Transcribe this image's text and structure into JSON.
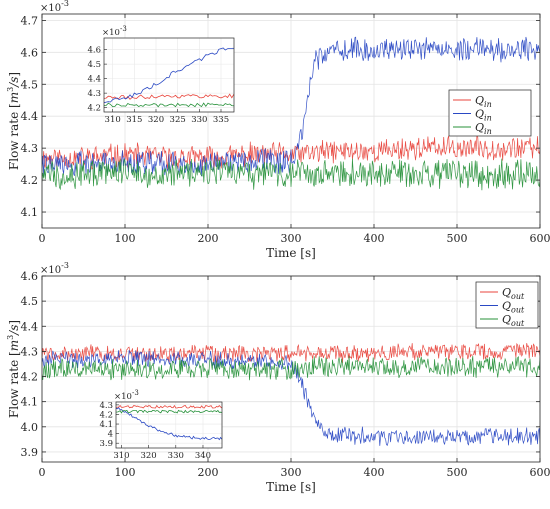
{
  "chart_data": [
    {
      "type": "line",
      "exponent_base": "10",
      "exponent_power": "-3",
      "xlabel": "Time [s]",
      "ylabel": "Flow rate [m³/s]",
      "ylabel_parts": {
        "pre": "Flow rate [",
        "unit_base": "m",
        "unit_sup": "3",
        "post": "/s]"
      },
      "xlim": [
        0,
        600
      ],
      "ylim": [
        4.05,
        4.72
      ],
      "xticks": [
        0,
        100,
        200,
        300,
        400,
        500,
        600
      ],
      "yticks": [
        4.1,
        4.2,
        4.3,
        4.4,
        4.5,
        4.6,
        4.7
      ],
      "grid": true,
      "legend": {
        "placement": "right-middle",
        "entries": [
          {
            "main": "Q",
            "sub": "in",
            "color": "#e8453c"
          },
          {
            "main": "Q",
            "sub": "in",
            "color": "#2a49c4"
          },
          {
            "main": "Q",
            "sub": "in",
            "color": "#27913a"
          }
        ]
      },
      "series": [
        {
          "color": "#e8453c",
          "x": [
            0,
            50,
            100,
            150,
            200,
            250,
            300,
            350,
            400,
            450,
            500,
            550,
            600
          ],
          "values": [
            4.27,
            4.27,
            4.28,
            4.27,
            4.27,
            4.28,
            4.28,
            4.29,
            4.29,
            4.3,
            4.3,
            4.3,
            4.3
          ]
        },
        {
          "color": "#2a49c4",
          "x": [
            0,
            50,
            100,
            150,
            200,
            250,
            300,
            310,
            315,
            320,
            325,
            330,
            340,
            350,
            400,
            450,
            500,
            550,
            600
          ],
          "values": [
            4.25,
            4.25,
            4.26,
            4.25,
            4.25,
            4.26,
            4.26,
            4.3,
            4.35,
            4.45,
            4.52,
            4.58,
            4.6,
            4.61,
            4.61,
            4.61,
            4.61,
            4.61,
            4.61
          ]
        },
        {
          "color": "#27913a",
          "x": [
            0,
            50,
            100,
            150,
            200,
            250,
            300,
            350,
            400,
            450,
            500,
            550,
            600
          ],
          "values": [
            4.22,
            4.22,
            4.23,
            4.22,
            4.22,
            4.22,
            4.22,
            4.22,
            4.22,
            4.22,
            4.22,
            4.22,
            4.22
          ]
        }
      ],
      "inset": {
        "xlim": [
          308,
          338
        ],
        "ylim": [
          4.17,
          4.68
        ],
        "xticks": [
          310,
          315,
          320,
          325,
          330,
          335
        ],
        "yticks": [
          4.2,
          4.3,
          4.4,
          4.5,
          4.6
        ],
        "exponent_base": "10",
        "exponent_power": "-3",
        "series": [
          {
            "color": "#e8453c",
            "x": [
              308,
              315,
              320,
              325,
              330,
              338
            ],
            "values": [
              4.27,
              4.27,
              4.28,
              4.28,
              4.28,
              4.28
            ]
          },
          {
            "color": "#2a49c4",
            "x": [
              308,
              312,
              316,
              320,
              324,
              328,
              332,
              335,
              338
            ],
            "values": [
              4.24,
              4.26,
              4.3,
              4.36,
              4.44,
              4.5,
              4.56,
              4.6,
              4.62
            ]
          },
          {
            "color": "#27913a",
            "x": [
              308,
              315,
              320,
              325,
              330,
              338
            ],
            "values": [
              4.22,
              4.22,
              4.22,
              4.22,
              4.22,
              4.22
            ]
          }
        ]
      }
    },
    {
      "type": "line",
      "exponent_base": "10",
      "exponent_power": "-3",
      "xlabel": "Time [s]",
      "ylabel": "Flow rate [m³/s]",
      "ylabel_parts": {
        "pre": "Flow rate [",
        "unit_base": "m",
        "unit_sup": "3",
        "post": "/s]"
      },
      "xlim": [
        0,
        600
      ],
      "ylim": [
        3.86,
        4.6
      ],
      "xticks": [
        0,
        100,
        200,
        300,
        400,
        500,
        600
      ],
      "yticks": [
        3.9,
        4.0,
        4.1,
        4.2,
        4.3,
        4.4,
        4.5,
        4.6
      ],
      "grid": true,
      "legend": {
        "placement": "top-right",
        "entries": [
          {
            "main": "Q",
            "sub": "out",
            "color": "#e8453c"
          },
          {
            "main": "Q",
            "sub": "out",
            "color": "#2a49c4"
          },
          {
            "main": "Q",
            "sub": "out",
            "color": "#27913a"
          }
        ]
      },
      "series": [
        {
          "color": "#e8453c",
          "x": [
            0,
            50,
            100,
            150,
            200,
            250,
            300,
            350,
            400,
            450,
            500,
            550,
            600
          ],
          "values": [
            4.29,
            4.29,
            4.29,
            4.29,
            4.29,
            4.29,
            4.29,
            4.29,
            4.29,
            4.3,
            4.3,
            4.3,
            4.3
          ]
        },
        {
          "color": "#2a49c4",
          "x": [
            0,
            50,
            100,
            150,
            200,
            250,
            300,
            310,
            320,
            330,
            340,
            350,
            400,
            450,
            500,
            550,
            600
          ],
          "values": [
            4.27,
            4.27,
            4.27,
            4.27,
            4.27,
            4.26,
            4.25,
            4.2,
            4.1,
            4.02,
            3.98,
            3.97,
            3.96,
            3.96,
            3.96,
            3.96,
            3.96
          ]
        },
        {
          "color": "#27913a",
          "x": [
            0,
            50,
            100,
            150,
            200,
            250,
            300,
            350,
            400,
            450,
            500,
            550,
            600
          ],
          "values": [
            4.23,
            4.23,
            4.23,
            4.23,
            4.23,
            4.23,
            4.23,
            4.24,
            4.24,
            4.24,
            4.24,
            4.24,
            4.24
          ]
        }
      ],
      "inset": {
        "xlim": [
          308,
          347
        ],
        "ylim": [
          3.85,
          4.33
        ],
        "xticks": [
          310,
          320,
          330,
          340
        ],
        "yticks": [
          3.9,
          4.0,
          4.1,
          4.2,
          4.3
        ],
        "ytick_labels": [
          "3.9",
          "4",
          "4.1",
          "4.2",
          "4.3"
        ],
        "exponent_base": "10",
        "exponent_power": "-3",
        "series": [
          {
            "color": "#e8453c",
            "x": [
              308,
              320,
              330,
              347
            ],
            "values": [
              4.28,
              4.28,
              4.28,
              4.28
            ]
          },
          {
            "color": "#2a49c4",
            "x": [
              308,
              312,
              316,
              320,
              325,
              330,
              335,
              340,
              347
            ],
            "values": [
              4.27,
              4.22,
              4.15,
              4.08,
              4.02,
              3.98,
              3.96,
              3.95,
              3.95
            ]
          },
          {
            "color": "#27913a",
            "x": [
              308,
              320,
              330,
              347
            ],
            "values": [
              4.23,
              4.23,
              4.23,
              4.23
            ]
          }
        ]
      }
    }
  ]
}
